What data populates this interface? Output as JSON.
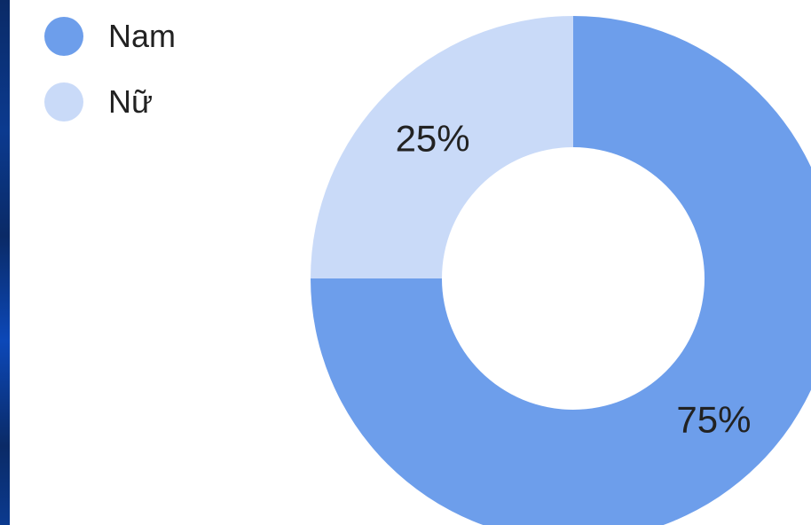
{
  "chart_data": {
    "type": "pie",
    "donut": true,
    "legend_position": "top-left",
    "slices": [
      {
        "label": "Nam",
        "value": 75,
        "display": "75%",
        "color": "#6d9eeb"
      },
      {
        "label": "Nữ",
        "value": 25,
        "display": "25%",
        "color": "#c9daf8"
      }
    ]
  }
}
